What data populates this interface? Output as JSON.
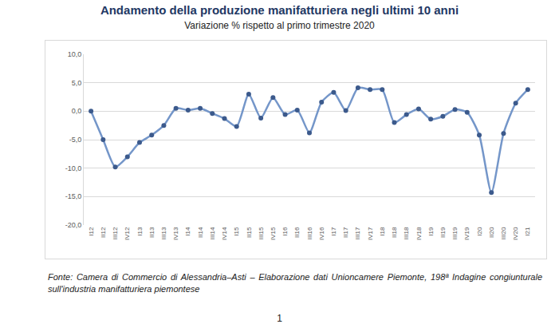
{
  "chart_data": {
    "type": "line",
    "title": "Andamento della produzione manifatturiera negli ultimi 10 anni",
    "subtitle": "Variazione % rispetto al primo trimestre 2020",
    "categories": [
      "I12",
      "II12",
      "III12",
      "IV12",
      "I13",
      "II13",
      "III13",
      "IV13",
      "I14",
      "II14",
      "III14",
      "IV14",
      "I15",
      "II15",
      "III15",
      "IV15",
      "I16",
      "II16",
      "III16",
      "IV16",
      "I17",
      "II17",
      "III17",
      "IV17",
      "I18",
      "II18",
      "III18",
      "IV18",
      "I19",
      "II19",
      "III19",
      "IV19",
      "I20",
      "II20",
      "III20",
      "IV20",
      "I21"
    ],
    "values": [
      0,
      -5,
      -9.8,
      -8,
      -5.5,
      -4.2,
      -2.5,
      0.5,
      0.2,
      0.5,
      -0.4,
      -1.3,
      -2.7,
      3,
      -1.2,
      2.4,
      -0.6,
      0.2,
      -3.8,
      1.6,
      3.3,
      0.1,
      4.1,
      3.8,
      3.8,
      -2,
      -0.6,
      0.4,
      -1.4,
      -0.9,
      0.3,
      -0.2,
      -4.2,
      -14.3,
      -3.9,
      1.4,
      3.8
    ],
    "color": "#7496c9",
    "marker": "circle",
    "ylim": [
      -20,
      10
    ],
    "yticks": [
      {
        "value": -20,
        "label": "-20,0"
      },
      {
        "value": -15,
        "label": "-15,0"
      },
      {
        "value": -10,
        "label": "-10,0"
      },
      {
        "value": -5,
        "label": "-5,0"
      },
      {
        "value": 0,
        "label": "0,0"
      },
      {
        "value": 5,
        "label": "5,0"
      },
      {
        "value": 10,
        "label": "10,0"
      }
    ],
    "grid": true
  },
  "source": "Fonte: Camera di Commercio di Alessandria–Asti – Elaborazione dati Unioncamere Piemonte, 198ª Indagine congiunturale sull'industria manifatturiera piemontese",
  "page_number": "1"
}
